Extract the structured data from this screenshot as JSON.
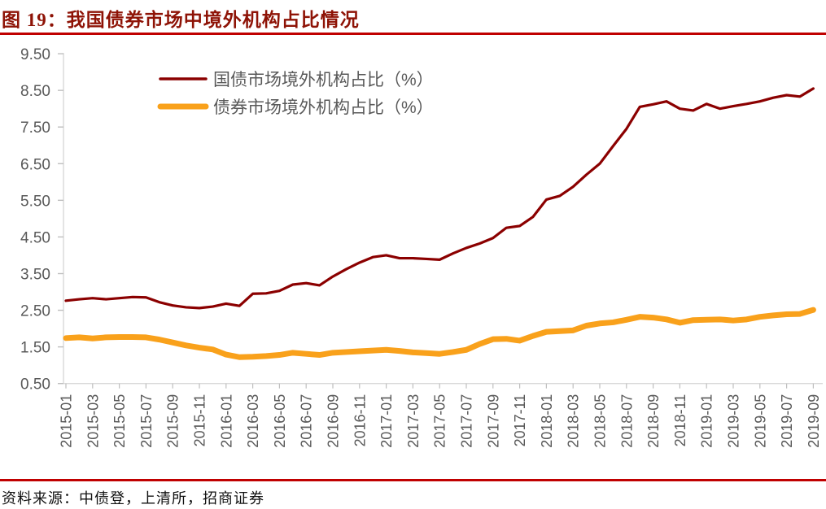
{
  "figure_title": "图 19：我国债券市场中境外机构占比情况",
  "source_note": "资料来源：中债登，上清所，招商证券",
  "colors": {
    "title": "#8E1306",
    "rule": "#C00000",
    "axis_line": "#D9D9D9",
    "tick": "#BFBFBF",
    "axis_label": "#595959",
    "legend_text": "#595959",
    "treasury_line": "#8B0000",
    "bond_line": "#F9A11B"
  },
  "chart_data": {
    "type": "line",
    "title": "",
    "xlabel": "",
    "ylabel": "",
    "ylim": [
      0.5,
      9.5
    ],
    "y_ticks": [
      "9.50",
      "8.50",
      "7.50",
      "6.50",
      "5.50",
      "4.50",
      "3.50",
      "2.50",
      "1.50",
      "0.50"
    ],
    "grid": false,
    "legend_position": "top-inside",
    "x_tick_every": 2,
    "x": [
      "2015-01",
      "2015-02",
      "2015-03",
      "2015-04",
      "2015-05",
      "2015-06",
      "2015-07",
      "2015-08",
      "2015-09",
      "2015-10",
      "2015-11",
      "2015-12",
      "2016-01",
      "2016-02",
      "2016-03",
      "2016-04",
      "2016-05",
      "2016-06",
      "2016-07",
      "2016-08",
      "2016-09",
      "2016-10",
      "2016-11",
      "2016-12",
      "2017-01",
      "2017-02",
      "2017-03",
      "2017-04",
      "2017-05",
      "2017-06",
      "2017-07",
      "2017-08",
      "2017-09",
      "2017-10",
      "2017-11",
      "2017-12",
      "2018-01",
      "2018-02",
      "2018-03",
      "2018-04",
      "2018-05",
      "2018-06",
      "2018-07",
      "2018-08",
      "2018-09",
      "2018-10",
      "2018-11",
      "2018-12",
      "2019-01",
      "2019-02",
      "2019-03",
      "2019-04",
      "2019-05",
      "2019-06",
      "2019-07",
      "2019-08",
      "2019-09"
    ],
    "series": [
      {
        "name": "国债市场境外机构占比（%）",
        "color": "#8B0000",
        "stroke_width": 3.2,
        "values": [
          2.76,
          2.8,
          2.83,
          2.8,
          2.83,
          2.86,
          2.85,
          2.72,
          2.63,
          2.58,
          2.56,
          2.6,
          2.68,
          2.62,
          2.95,
          2.96,
          3.03,
          3.2,
          3.24,
          3.18,
          3.42,
          3.62,
          3.8,
          3.95,
          4.0,
          3.92,
          3.92,
          3.9,
          3.88,
          4.05,
          4.2,
          4.32,
          4.47,
          4.75,
          4.8,
          5.05,
          5.52,
          5.62,
          5.87,
          6.2,
          6.5,
          6.98,
          7.45,
          8.05,
          8.12,
          8.2,
          8.0,
          7.95,
          8.13,
          8.0,
          8.07,
          8.13,
          8.2,
          8.3,
          8.37,
          8.33,
          8.55
        ]
      },
      {
        "name": "债券市场境外机构占比（%）",
        "color": "#F9A11B",
        "stroke_width": 7,
        "values": [
          1.74,
          1.76,
          1.73,
          1.76,
          1.77,
          1.77,
          1.76,
          1.7,
          1.62,
          1.54,
          1.48,
          1.43,
          1.29,
          1.22,
          1.23,
          1.25,
          1.28,
          1.34,
          1.31,
          1.28,
          1.34,
          1.36,
          1.38,
          1.4,
          1.42,
          1.39,
          1.35,
          1.33,
          1.31,
          1.36,
          1.42,
          1.58,
          1.71,
          1.72,
          1.67,
          1.8,
          1.91,
          1.93,
          1.95,
          2.08,
          2.14,
          2.17,
          2.24,
          2.32,
          2.3,
          2.25,
          2.16,
          2.23,
          2.24,
          2.25,
          2.22,
          2.25,
          2.32,
          2.36,
          2.39,
          2.4,
          2.51
        ]
      }
    ]
  }
}
